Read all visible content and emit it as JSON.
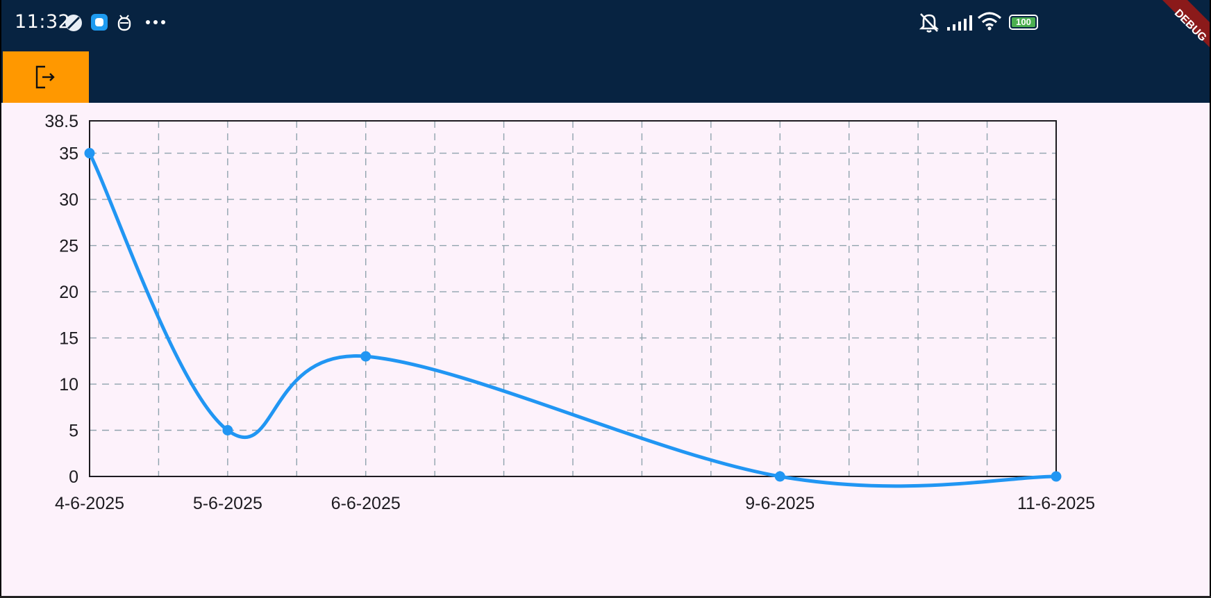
{
  "status_bar": {
    "time": "11:32",
    "battery": "100",
    "icons": [
      "compass-icon",
      "app-bubble-icon",
      "bug-robot-icon",
      "more-dots-icon",
      "mute-icon",
      "signal-icon",
      "wifi-icon",
      "battery-icon"
    ]
  },
  "debug_banner": {
    "label": "DEBUG",
    "color": "#8b1a1a"
  },
  "app_bar": {
    "logout_icon": "logout-icon",
    "logout_color": "#ff9800",
    "background": "#072341"
  },
  "chart_data": {
    "type": "line",
    "curve": "smooth",
    "x": [
      "4-6-2025",
      "5-6-2025",
      "6-6-2025",
      "9-6-2025",
      "11-6-2025"
    ],
    "x_day_index": [
      0,
      1,
      2,
      5,
      7
    ],
    "xlim": [
      0,
      7
    ],
    "series": [
      {
        "values": [
          35,
          5,
          13,
          0,
          0
        ],
        "color": "#2196f3"
      }
    ],
    "ylim": [
      0,
      38.5
    ],
    "yticks": [
      "0",
      "5",
      "10",
      "15",
      "20",
      "25",
      "30",
      "35",
      "38.5"
    ],
    "ytick_values": [
      0,
      5,
      10,
      15,
      20,
      25,
      30,
      35,
      38.5
    ],
    "grid": true,
    "grid_color": "#8fa3ad",
    "title": "",
    "xlabel": "",
    "ylabel": ""
  }
}
